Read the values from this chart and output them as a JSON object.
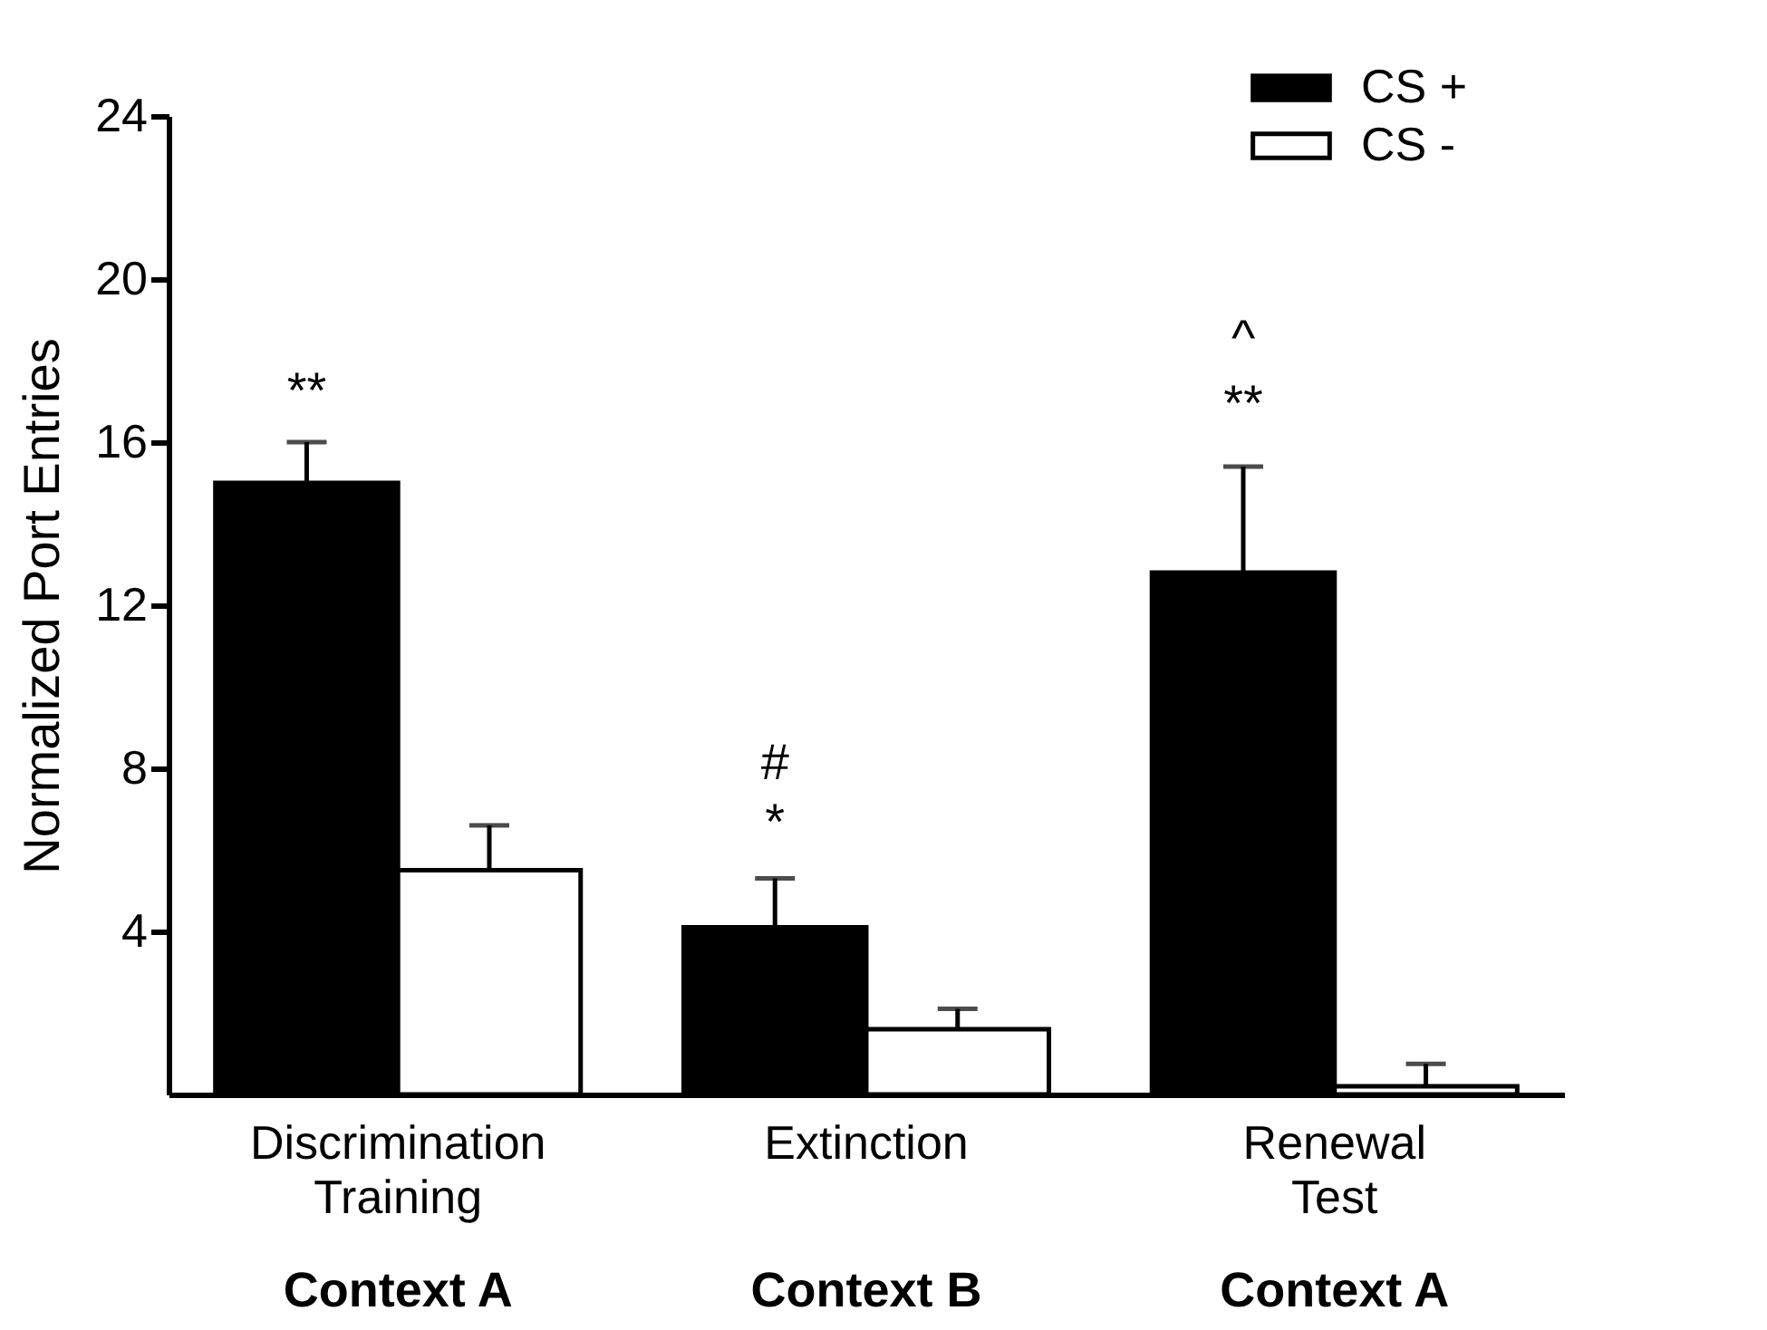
{
  "chart_data": {
    "type": "bar",
    "ylabel": "Normalized Port Entries",
    "categories": [
      "Discrimination Training",
      "Extinction",
      "Renewal Test"
    ],
    "series": [
      {
        "name": "CS +",
        "color": "#000000",
        "values": [
          15,
          4.1,
          12.8
        ],
        "errors": [
          [
            15,
            16
          ],
          [
            4.1,
            5.3
          ],
          [
            12.8,
            15.4
          ]
        ]
      },
      {
        "name": "CS -",
        "color": "#ffffff",
        "values": [
          5.5,
          1.6,
          0.2
        ],
        "errors": [
          [
            5.5,
            6.6
          ],
          [
            1.6,
            2.1
          ],
          [
            0.2,
            0.75
          ]
        ]
      }
    ],
    "ylim": [
      0,
      24
    ],
    "yticks": [
      4,
      8,
      12,
      16,
      20,
      24
    ],
    "grid": false,
    "legend": "top right",
    "annotations": [
      "**",
      "*",
      "#",
      "**",
      "^",
      "Context A",
      "Context B",
      "Context A"
    ]
  }
}
